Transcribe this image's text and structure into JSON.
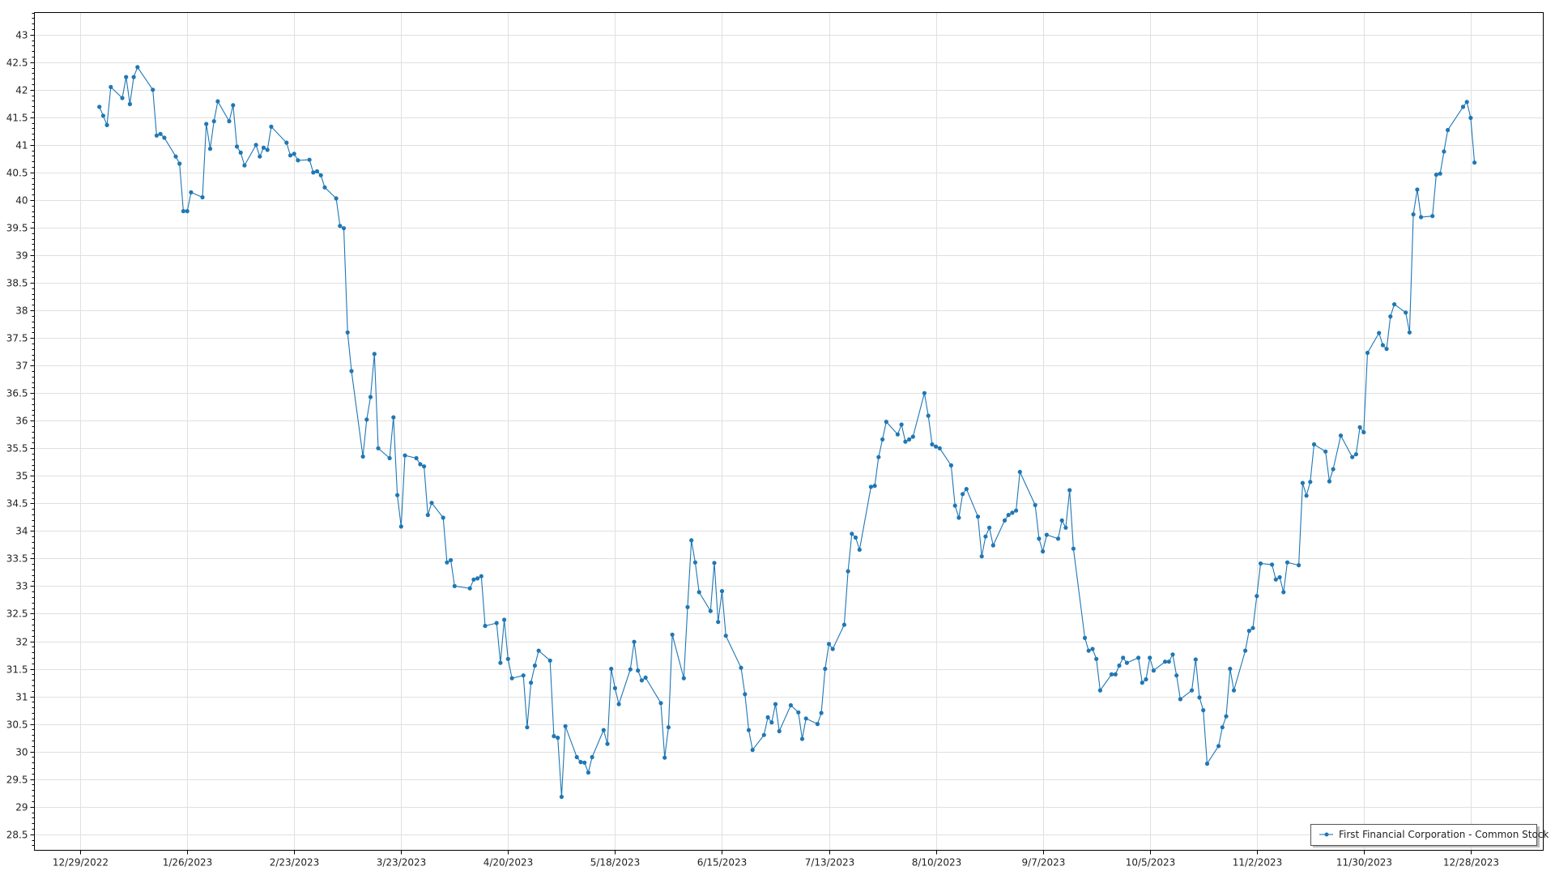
{
  "chart_data": {
    "type": "line",
    "title": "",
    "xlabel": "",
    "ylabel": "",
    "xlim": [
      "2022-12-17",
      "2024-01-16"
    ],
    "ylim": [
      28.21,
      43.4
    ],
    "grid": true,
    "legend_placement": "bottom-right",
    "colors": {
      "series": "#1f77b4",
      "grid": "#e0e0e0",
      "axis": "#000000"
    },
    "y_ticks": [
      "28.5",
      "29",
      "29.5",
      "30",
      "30.5",
      "31",
      "31.5",
      "32",
      "32.5",
      "33",
      "33.5",
      "34",
      "34.5",
      "35",
      "35.5",
      "36",
      "36.5",
      "37",
      "37.5",
      "38",
      "38.5",
      "39",
      "39.5",
      "40",
      "40.5",
      "41",
      "41.5",
      "42",
      "42.5",
      "43"
    ],
    "x_ticks": [
      {
        "date": "2022-12-29",
        "label": "12/29/2022"
      },
      {
        "date": "2023-01-26",
        "label": "1/26/2023"
      },
      {
        "date": "2023-02-23",
        "label": "2/23/2023"
      },
      {
        "date": "2023-03-23",
        "label": "3/23/2023"
      },
      {
        "date": "2023-04-20",
        "label": "4/20/2023"
      },
      {
        "date": "2023-05-18",
        "label": "5/18/2023"
      },
      {
        "date": "2023-06-15",
        "label": "6/15/2023"
      },
      {
        "date": "2023-07-13",
        "label": "7/13/2023"
      },
      {
        "date": "2023-08-10",
        "label": "8/10/2023"
      },
      {
        "date": "2023-09-07",
        "label": "9/7/2023"
      },
      {
        "date": "2023-10-05",
        "label": "10/5/2023"
      },
      {
        "date": "2023-11-02",
        "label": "11/2/2023"
      },
      {
        "date": "2023-11-30",
        "label": "11/30/2023"
      },
      {
        "date": "2023-12-28",
        "label": "12/28/2023"
      }
    ],
    "series": [
      {
        "name": "First Financial Corporation  - Common Stock",
        "points": [
          [
            "2023-01-03",
            41.69
          ],
          [
            "2023-01-04",
            41.53
          ],
          [
            "2023-01-05",
            41.36
          ],
          [
            "2023-01-06",
            42.05
          ],
          [
            "2023-01-09",
            41.85
          ],
          [
            "2023-01-10",
            42.23
          ],
          [
            "2023-01-11",
            41.74
          ],
          [
            "2023-01-12",
            42.23
          ],
          [
            "2023-01-13",
            42.41
          ],
          [
            "2023-01-17",
            42.0
          ],
          [
            "2023-01-18",
            41.17
          ],
          [
            "2023-01-19",
            41.2
          ],
          [
            "2023-01-20",
            41.13
          ],
          [
            "2023-01-23",
            40.79
          ],
          [
            "2023-01-24",
            40.66
          ],
          [
            "2023-01-25",
            39.8
          ],
          [
            "2023-01-26",
            39.8
          ],
          [
            "2023-01-27",
            40.14
          ],
          [
            "2023-01-30",
            40.05
          ],
          [
            "2023-01-31",
            41.38
          ],
          [
            "2023-02-01",
            40.93
          ],
          [
            "2023-02-02",
            41.43
          ],
          [
            "2023-02-03",
            41.79
          ],
          [
            "2023-02-06",
            41.43
          ],
          [
            "2023-02-07",
            41.72
          ],
          [
            "2023-02-08",
            40.97
          ],
          [
            "2023-02-09",
            40.86
          ],
          [
            "2023-02-10",
            40.63
          ],
          [
            "2023-02-13",
            41.0
          ],
          [
            "2023-02-14",
            40.79
          ],
          [
            "2023-02-15",
            40.95
          ],
          [
            "2023-02-16",
            40.91
          ],
          [
            "2023-02-17",
            41.33
          ],
          [
            "2023-02-21",
            41.04
          ],
          [
            "2023-02-22",
            40.81
          ],
          [
            "2023-02-23",
            40.84
          ],
          [
            "2023-02-24",
            40.72
          ],
          [
            "2023-02-27",
            40.73
          ],
          [
            "2023-02-28",
            40.5
          ],
          [
            "2023-03-01",
            40.52
          ],
          [
            "2023-03-02",
            40.45
          ],
          [
            "2023-03-03",
            40.23
          ],
          [
            "2023-03-06",
            40.03
          ],
          [
            "2023-03-07",
            39.53
          ],
          [
            "2023-03-08",
            39.49
          ],
          [
            "2023-03-09",
            37.6
          ],
          [
            "2023-03-10",
            36.9
          ],
          [
            "2023-03-13",
            35.35
          ],
          [
            "2023-03-14",
            36.02
          ],
          [
            "2023-03-15",
            36.43
          ],
          [
            "2023-03-16",
            37.21
          ],
          [
            "2023-03-17",
            35.5
          ],
          [
            "2023-03-20",
            35.32
          ],
          [
            "2023-03-21",
            36.06
          ],
          [
            "2023-03-22",
            34.65
          ],
          [
            "2023-03-23",
            34.08
          ],
          [
            "2023-03-24",
            35.37
          ],
          [
            "2023-03-27",
            35.32
          ],
          [
            "2023-03-28",
            35.21
          ],
          [
            "2023-03-29",
            35.17
          ],
          [
            "2023-03-30",
            34.29
          ],
          [
            "2023-03-31",
            34.51
          ],
          [
            "2023-04-03",
            34.24
          ],
          [
            "2023-04-04",
            33.43
          ],
          [
            "2023-04-05",
            33.47
          ],
          [
            "2023-04-06",
            33.0
          ],
          [
            "2023-04-10",
            32.96
          ],
          [
            "2023-04-11",
            33.12
          ],
          [
            "2023-04-12",
            33.14
          ],
          [
            "2023-04-13",
            33.18
          ],
          [
            "2023-04-14",
            32.28
          ],
          [
            "2023-04-17",
            32.33
          ],
          [
            "2023-04-18",
            31.61
          ],
          [
            "2023-04-19",
            32.39
          ],
          [
            "2023-04-20",
            31.68
          ],
          [
            "2023-04-21",
            31.33
          ],
          [
            "2023-04-24",
            31.38
          ],
          [
            "2023-04-25",
            30.44
          ],
          [
            "2023-04-26",
            31.25
          ],
          [
            "2023-04-27",
            31.56
          ],
          [
            "2023-04-28",
            31.83
          ],
          [
            "2023-05-01",
            31.65
          ],
          [
            "2023-05-02",
            30.28
          ],
          [
            "2023-05-03",
            30.25
          ],
          [
            "2023-05-04",
            29.18
          ],
          [
            "2023-05-05",
            30.46
          ],
          [
            "2023-05-08",
            29.9
          ],
          [
            "2023-05-09",
            29.81
          ],
          [
            "2023-05-10",
            29.8
          ],
          [
            "2023-05-11",
            29.62
          ],
          [
            "2023-05-12",
            29.9
          ],
          [
            "2023-05-15",
            30.39
          ],
          [
            "2023-05-16",
            30.14
          ],
          [
            "2023-05-17",
            31.5
          ],
          [
            "2023-05-18",
            31.15
          ],
          [
            "2023-05-19",
            30.86
          ],
          [
            "2023-05-22",
            31.49
          ],
          [
            "2023-05-23",
            31.99
          ],
          [
            "2023-05-24",
            31.47
          ],
          [
            "2023-05-25",
            31.29
          ],
          [
            "2023-05-26",
            31.34
          ],
          [
            "2023-05-30",
            30.88
          ],
          [
            "2023-05-31",
            29.89
          ],
          [
            "2023-06-01",
            30.44
          ],
          [
            "2023-06-02",
            32.12
          ],
          [
            "2023-06-05",
            31.33
          ],
          [
            "2023-06-06",
            32.62
          ],
          [
            "2023-06-07",
            33.83
          ],
          [
            "2023-06-08",
            33.43
          ],
          [
            "2023-06-09",
            32.89
          ],
          [
            "2023-06-12",
            32.55
          ],
          [
            "2023-06-13",
            33.42
          ],
          [
            "2023-06-14",
            32.35
          ],
          [
            "2023-06-15",
            32.91
          ],
          [
            "2023-06-16",
            32.1
          ],
          [
            "2023-06-20",
            31.52
          ],
          [
            "2023-06-21",
            31.04
          ],
          [
            "2023-06-22",
            30.39
          ],
          [
            "2023-06-23",
            30.03
          ],
          [
            "2023-06-26",
            30.3
          ],
          [
            "2023-06-27",
            30.62
          ],
          [
            "2023-06-28",
            30.53
          ],
          [
            "2023-06-29",
            30.86
          ],
          [
            "2023-06-30",
            30.37
          ],
          [
            "2023-07-03",
            30.84
          ],
          [
            "2023-07-05",
            30.71
          ],
          [
            "2023-07-06",
            30.23
          ],
          [
            "2023-07-07",
            30.6
          ],
          [
            "2023-07-10",
            30.5
          ],
          [
            "2023-07-11",
            30.7
          ],
          [
            "2023-07-12",
            31.5
          ],
          [
            "2023-07-13",
            31.95
          ],
          [
            "2023-07-14",
            31.86
          ],
          [
            "2023-07-17",
            32.3
          ],
          [
            "2023-07-18",
            33.27
          ],
          [
            "2023-07-19",
            33.95
          ],
          [
            "2023-07-20",
            33.88
          ],
          [
            "2023-07-21",
            33.66
          ],
          [
            "2023-07-24",
            34.8
          ],
          [
            "2023-07-25",
            34.82
          ],
          [
            "2023-07-26",
            35.34
          ],
          [
            "2023-07-27",
            35.66
          ],
          [
            "2023-07-28",
            35.98
          ],
          [
            "2023-07-31",
            35.75
          ],
          [
            "2023-08-01",
            35.93
          ],
          [
            "2023-08-02",
            35.62
          ],
          [
            "2023-08-03",
            35.66
          ],
          [
            "2023-08-04",
            35.71
          ],
          [
            "2023-08-07",
            36.5
          ],
          [
            "2023-08-08",
            36.09
          ],
          [
            "2023-08-09",
            35.57
          ],
          [
            "2023-08-10",
            35.53
          ],
          [
            "2023-08-11",
            35.5
          ],
          [
            "2023-08-14",
            35.19
          ],
          [
            "2023-08-15",
            34.46
          ],
          [
            "2023-08-16",
            34.24
          ],
          [
            "2023-08-17",
            34.67
          ],
          [
            "2023-08-18",
            34.76
          ],
          [
            "2023-08-21",
            34.26
          ],
          [
            "2023-08-22",
            33.54
          ],
          [
            "2023-08-23",
            33.9
          ],
          [
            "2023-08-24",
            34.06
          ],
          [
            "2023-08-25",
            33.74
          ],
          [
            "2023-08-28",
            34.19
          ],
          [
            "2023-08-29",
            34.29
          ],
          [
            "2023-08-30",
            34.33
          ],
          [
            "2023-08-31",
            34.37
          ],
          [
            "2023-09-01",
            35.07
          ],
          [
            "2023-09-05",
            34.47
          ],
          [
            "2023-09-06",
            33.86
          ],
          [
            "2023-09-07",
            33.63
          ],
          [
            "2023-09-08",
            33.93
          ],
          [
            "2023-09-11",
            33.86
          ],
          [
            "2023-09-12",
            34.19
          ],
          [
            "2023-09-13",
            34.06
          ],
          [
            "2023-09-14",
            34.74
          ],
          [
            "2023-09-15",
            33.68
          ],
          [
            "2023-09-18",
            32.06
          ],
          [
            "2023-09-19",
            31.83
          ],
          [
            "2023-09-20",
            31.86
          ],
          [
            "2023-09-21",
            31.68
          ],
          [
            "2023-09-22",
            31.11
          ],
          [
            "2023-09-25",
            31.4
          ],
          [
            "2023-09-26",
            31.4
          ],
          [
            "2023-09-27",
            31.56
          ],
          [
            "2023-09-28",
            31.7
          ],
          [
            "2023-09-29",
            31.61
          ],
          [
            "2023-10-02",
            31.7
          ],
          [
            "2023-10-03",
            31.25
          ],
          [
            "2023-10-04",
            31.31
          ],
          [
            "2023-10-05",
            31.7
          ],
          [
            "2023-10-06",
            31.47
          ],
          [
            "2023-10-09",
            31.63
          ],
          [
            "2023-10-10",
            31.63
          ],
          [
            "2023-10-11",
            31.76
          ],
          [
            "2023-10-12",
            31.38
          ],
          [
            "2023-10-13",
            30.95
          ],
          [
            "2023-10-16",
            31.11
          ],
          [
            "2023-10-17",
            31.67
          ],
          [
            "2023-10-18",
            30.98
          ],
          [
            "2023-10-19",
            30.75
          ],
          [
            "2023-10-20",
            29.78
          ],
          [
            "2023-10-23",
            30.1
          ],
          [
            "2023-10-24",
            30.44
          ],
          [
            "2023-10-25",
            30.64
          ],
          [
            "2023-10-26",
            31.5
          ],
          [
            "2023-10-27",
            31.11
          ],
          [
            "2023-10-30",
            31.83
          ],
          [
            "2023-10-31",
            32.19
          ],
          [
            "2023-11-01",
            32.24
          ],
          [
            "2023-11-02",
            32.82
          ],
          [
            "2023-11-03",
            33.41
          ],
          [
            "2023-11-06",
            33.39
          ],
          [
            "2023-11-07",
            33.12
          ],
          [
            "2023-11-08",
            33.16
          ],
          [
            "2023-11-09",
            32.89
          ],
          [
            "2023-11-10",
            33.43
          ],
          [
            "2023-11-13",
            33.38
          ],
          [
            "2023-11-14",
            34.87
          ],
          [
            "2023-11-15",
            34.64
          ],
          [
            "2023-11-16",
            34.89
          ],
          [
            "2023-11-17",
            35.57
          ],
          [
            "2023-11-20",
            35.44
          ],
          [
            "2023-11-21",
            34.9
          ],
          [
            "2023-11-22",
            35.12
          ],
          [
            "2023-11-24",
            35.73
          ],
          [
            "2023-11-27",
            35.34
          ],
          [
            "2023-11-28",
            35.39
          ],
          [
            "2023-11-29",
            35.88
          ],
          [
            "2023-11-30",
            35.79
          ],
          [
            "2023-12-01",
            37.23
          ],
          [
            "2023-12-04",
            37.59
          ],
          [
            "2023-12-05",
            37.37
          ],
          [
            "2023-12-06",
            37.3
          ],
          [
            "2023-12-07",
            37.89
          ],
          [
            "2023-12-08",
            38.11
          ],
          [
            "2023-12-11",
            37.96
          ],
          [
            "2023-12-12",
            37.6
          ],
          [
            "2023-12-13",
            39.74
          ],
          [
            "2023-12-14",
            40.19
          ],
          [
            "2023-12-15",
            39.69
          ],
          [
            "2023-12-18",
            39.71
          ],
          [
            "2023-12-19",
            40.46
          ],
          [
            "2023-12-20",
            40.48
          ],
          [
            "2023-12-21",
            40.88
          ],
          [
            "2023-12-22",
            41.27
          ],
          [
            "2023-12-26",
            41.69
          ],
          [
            "2023-12-27",
            41.78
          ],
          [
            "2023-12-28",
            41.49
          ],
          [
            "2023-12-29",
            40.68
          ]
        ]
      }
    ],
    "legend": {
      "entries": [
        "First Financial Corporation  - Common Stock"
      ]
    }
  }
}
